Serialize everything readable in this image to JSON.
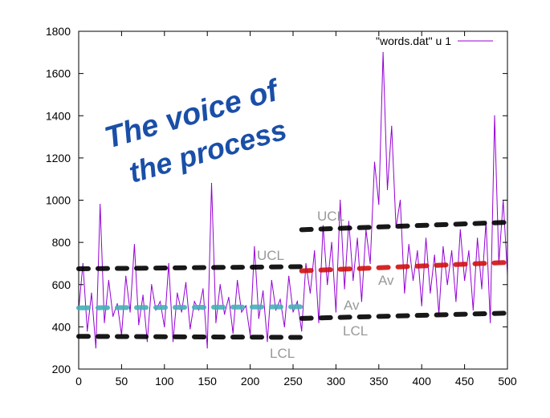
{
  "chart_data": {
    "type": "line",
    "title": "",
    "xlabel": "",
    "ylabel": "",
    "xlim": [
      0,
      500
    ],
    "ylim": [
      200,
      1800
    ],
    "grid": false,
    "legend_placement": "top-right",
    "x_ticks": [
      0,
      50,
      100,
      150,
      200,
      250,
      300,
      350,
      400,
      450,
      500
    ],
    "y_ticks": [
      200,
      400,
      600,
      800,
      1000,
      1200,
      1400,
      1600,
      1800
    ],
    "series": [
      {
        "name": "\"words.dat\" u 1",
        "color": "#9400d3",
        "x": [
          0,
          5,
          10,
          15,
          20,
          25,
          30,
          35,
          40,
          45,
          50,
          55,
          60,
          65,
          70,
          75,
          80,
          85,
          90,
          95,
          100,
          105,
          110,
          115,
          120,
          125,
          130,
          135,
          140,
          145,
          150,
          155,
          160,
          165,
          170,
          175,
          180,
          185,
          190,
          195,
          200,
          205,
          210,
          215,
          220,
          225,
          230,
          235,
          240,
          245,
          250,
          255,
          260,
          265,
          270,
          275,
          280,
          285,
          290,
          295,
          300,
          305,
          310,
          315,
          320,
          325,
          330,
          335,
          340,
          345,
          350,
          355,
          360,
          365,
          370,
          375,
          380,
          385,
          390,
          395,
          400,
          405,
          410,
          415,
          420,
          425,
          430,
          435,
          440,
          445,
          450,
          455,
          460,
          465,
          470,
          475,
          480,
          485,
          490,
          495,
          500
        ],
        "values": [
          480,
          700,
          380,
          560,
          300,
          980,
          420,
          620,
          450,
          510,
          360,
          640,
          470,
          790,
          410,
          550,
          330,
          600,
          480,
          520,
          400,
          700,
          330,
          560,
          470,
          610,
          390,
          520,
          480,
          580,
          300,
          1080,
          420,
          600,
          460,
          540,
          370,
          620,
          470,
          500,
          360,
          780,
          440,
          570,
          330,
          620,
          480,
          530,
          400,
          640,
          470,
          520,
          380,
          700,
          560,
          760,
          420,
          880,
          600,
          800,
          470,
          1000,
          580,
          900,
          620,
          820,
          520,
          860,
          700,
          1180,
          980,
          1700,
          1050,
          1350,
          870,
          1000,
          560,
          790,
          620,
          760,
          500,
          820,
          560,
          740,
          460,
          780,
          600,
          760,
          520,
          860,
          620,
          760,
          480,
          820,
          580,
          900,
          420,
          1400,
          700,
          1000,
          650
        ]
      }
    ],
    "annotations": {
      "title_line1": "The voice of",
      "title_line2": "the process",
      "title_color": "#1a4fa8",
      "ucl_label_1": "UCL",
      "lcl_label_1": "LCL",
      "av_label_1": "Av",
      "ucl_label_2": "UCL",
      "lcl_label_2": "LCL",
      "av_label_2": "Av",
      "limit_color": "#000000",
      "av_color_1": "#45b0b8",
      "av_color_2": "#d01010",
      "segments": [
        {
          "x": [
            0,
            260
          ],
          "ucl": [
            675,
            685
          ],
          "av": [
            490,
            495
          ],
          "lcl": [
            355,
            350
          ]
        },
        {
          "x": [
            260,
            500
          ],
          "ucl": [
            860,
            895
          ],
          "av": [
            665,
            705
          ],
          "lcl": [
            440,
            465
          ]
        }
      ]
    }
  }
}
